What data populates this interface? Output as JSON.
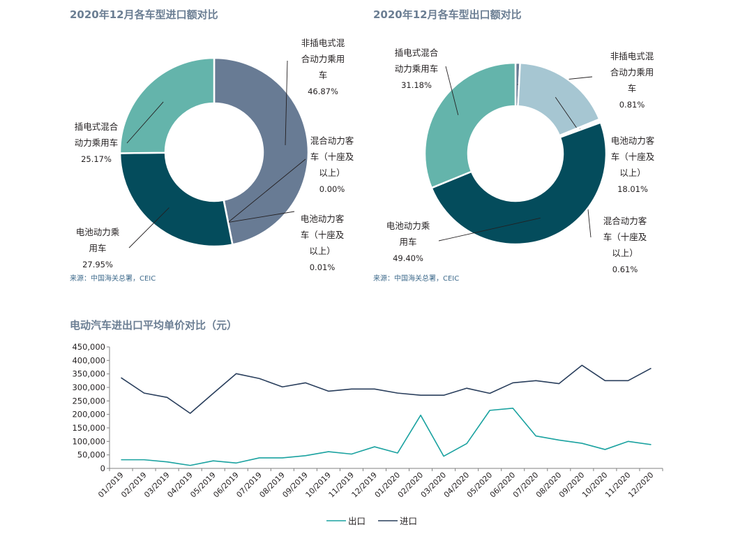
{
  "import_pie": {
    "title": "2020年12月各车型进口额对比",
    "source": "来源：中国海关总署，CEIC"
  },
  "export_pie": {
    "title": "2020年12月各车型出口额对比",
    "source": "来源：中国海关总署，CEIC"
  },
  "line_chart": {
    "title": "电动汽车进出口平均单价对比（元）"
  },
  "colors": {
    "phev_passenger": "#64b4ab",
    "nonplugin_hybrid_passenger": "#687b94",
    "bev_bus": "#fcfcfc",
    "bev_passenger": "#044c5c",
    "hybrid_bus": "#a6c6d2",
    "import_line": "#293e5c",
    "export_line": "#1aa2a0"
  },
  "chart_data": [
    {
      "type": "pie",
      "title": "2020年12月各车型进口额对比",
      "slices": [
        {
          "name": [
            "非插电式混",
            "合动力乘用",
            "车"
          ],
          "value": 46.87,
          "label": "46.87%",
          "color": "#687b94"
        },
        {
          "name": [
            "混合动力客",
            "车（十座及",
            "以上）"
          ],
          "value": 0.0,
          "label": "0.00%",
          "color": "#fcfcfc"
        },
        {
          "name": [
            "电池动力客",
            "车（十座及",
            "以上）"
          ],
          "value": 0.01,
          "label": "0.01%",
          "color": "#fcfcfc"
        },
        {
          "name": [
            "电池动力乘",
            "用车"
          ],
          "value": 27.95,
          "label": "27.95%",
          "color": "#044c5c"
        },
        {
          "name": [
            "插电式混合",
            "动力乘用车"
          ],
          "value": 25.17,
          "label": "25.17%",
          "color": "#64b4ab"
        }
      ]
    },
    {
      "type": "pie",
      "title": "2020年12月各车型出口额对比",
      "slices": [
        {
          "name": [
            "非插电式混",
            "合动力乘用",
            "车"
          ],
          "value": 0.81,
          "label": "0.81%",
          "color": "#687b94"
        },
        {
          "name": [
            "电池动力客",
            "车（十座及",
            "以上）"
          ],
          "value": 18.01,
          "label": "18.01%",
          "color": "#a6c6d2"
        },
        {
          "name": [
            "混合动力客",
            "车（十座及",
            "以上）"
          ],
          "value": 0.61,
          "label": "0.61%",
          "color": "#fcfcfc"
        },
        {
          "name": [
            "电池动力乘",
            "用车"
          ],
          "value": 49.4,
          "label": "49.40%",
          "color": "#044c5c"
        },
        {
          "name": [
            "插电式混合",
            "动力乘用车"
          ],
          "value": 31.18,
          "label": "31.18%",
          "color": "#64b4ab"
        }
      ]
    },
    {
      "type": "line",
      "title": "电动汽车进出口平均单价对比（元）",
      "x": [
        "01/2019",
        "02/2019",
        "03/2019",
        "04/2019",
        "05/2019",
        "06/2019",
        "07/2019",
        "08/2019",
        "09/2019",
        "10/2019",
        "11/2019",
        "12/2019",
        "01/2020",
        "02/2020",
        "03/2020",
        "04/2020",
        "05/2020",
        "06/2020",
        "07/2020",
        "08/2020",
        "09/2020",
        "10/2020",
        "11/2020",
        "12/2020"
      ],
      "yticks": [
        "0",
        "50,000",
        "100,000",
        "150,000",
        "200,000",
        "250,000",
        "300,000",
        "350,000",
        "400,000",
        "450,000"
      ],
      "ylim": [
        0,
        450000
      ],
      "grid": false,
      "legend": "bottom",
      "series": [
        {
          "name": "出口",
          "color": "#1aa2a0",
          "values": [
            32000,
            32000,
            24000,
            11000,
            28000,
            20000,
            39000,
            39000,
            47000,
            62000,
            53000,
            80000,
            57000,
            197000,
            45000,
            92000,
            215000,
            223000,
            120000,
            105000,
            93000,
            70000,
            100000,
            88000
          ]
        },
        {
          "name": "进口",
          "color": "#293e5c",
          "values": [
            336000,
            279000,
            263000,
            204000,
            278000,
            351000,
            333000,
            302000,
            317000,
            286000,
            294000,
            294000,
            279000,
            271000,
            271000,
            297000,
            278000,
            317000,
            325000,
            314000,
            382000,
            325000,
            325000,
            371000
          ]
        }
      ]
    }
  ]
}
